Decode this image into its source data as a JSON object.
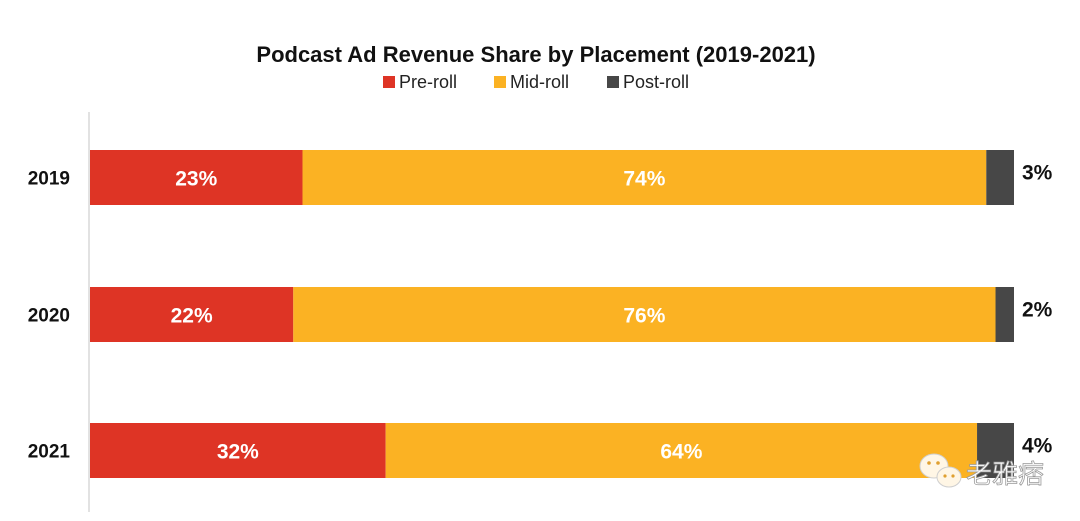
{
  "chart_data": {
    "type": "bar",
    "orientation": "horizontal",
    "stacked": true,
    "title": "Podcast Ad Revenue Share by Placement (2019-2021)",
    "xlabel": "",
    "ylabel": "",
    "xlim": [
      0,
      100
    ],
    "grid": false,
    "legend_position": "top",
    "categories": [
      "2019",
      "2020",
      "2021"
    ],
    "series": [
      {
        "name": "Pre-roll",
        "color": "#DE3425",
        "values": [
          23,
          22,
          32
        ],
        "labels": [
          "23%",
          "22%",
          "32%"
        ]
      },
      {
        "name": "Mid-roll",
        "color": "#FBB223",
        "values": [
          74,
          76,
          64
        ],
        "labels": [
          "74%",
          "76%",
          "64%"
        ]
      },
      {
        "name": "Post-roll",
        "color": "#474747",
        "values": [
          3,
          2,
          4
        ],
        "labels": [
          "3%",
          "2%",
          "4%"
        ]
      }
    ]
  },
  "watermark": {
    "icon": "wechat-icon",
    "text": "老雅痞"
  }
}
